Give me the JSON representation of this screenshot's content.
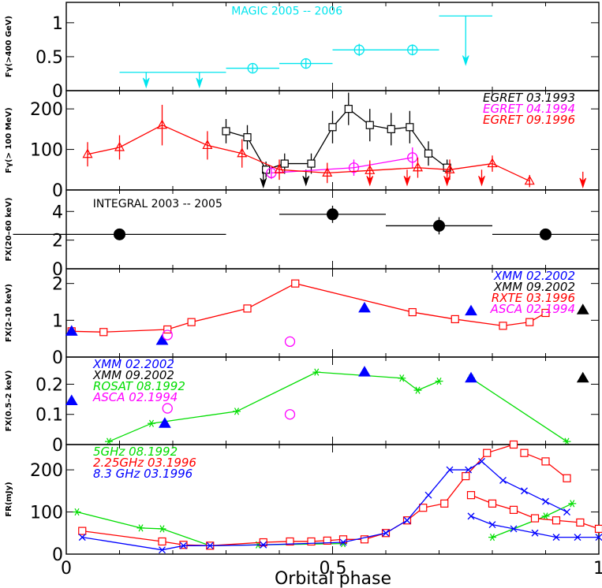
{
  "figure": {
    "xlabel": "Orbital phase",
    "x_ticks": [
      "0",
      "0.5",
      "1"
    ]
  },
  "chart_data": [
    {
      "id": "p1",
      "type": "scatter",
      "ylabel": "Fγ(>400 GeV)",
      "xlim": [
        0,
        1
      ],
      "ylim": [
        0,
        1.3
      ],
      "y_ticks": [
        0,
        0.5,
        1
      ],
      "y_tick_labels": [
        "0",
        "0.5",
        "1"
      ],
      "annotations": [
        {
          "text": "MAGIC 2005 -- 2006",
          "x": 0.31,
          "y": 1.12,
          "color": "#00e5ee"
        }
      ],
      "series": [
        {
          "name": "MAGIC 2005 -- 2006",
          "color": "#00e5ee",
          "marker": "circle",
          "connect": false,
          "points": [
            {
              "x": 0.35,
              "y": 0.33,
              "xerr": 0.05,
              "yerr": 0.06
            },
            {
              "x": 0.45,
              "y": 0.4,
              "xerr": 0.05,
              "yerr": 0.07
            },
            {
              "x": 0.55,
              "y": 0.6,
              "xerr": 0.05,
              "yerr": 0.09
            },
            {
              "x": 0.65,
              "y": 0.6,
              "xerr": 0.05,
              "yerr": 0.08
            }
          ],
          "upper_limits": [
            {
              "x": 0.15,
              "y": 0.27,
              "xerr": 0.05,
              "len": 0.2
            },
            {
              "x": 0.25,
              "y": 0.27,
              "xerr": 0.05,
              "len": 0.2
            },
            {
              "x": 0.75,
              "y": 1.1,
              "xerr": 0.05,
              "len": 0.7
            }
          ]
        }
      ]
    },
    {
      "id": "p2",
      "type": "line",
      "ylabel": "Fγ(> 100 MeV)",
      "xlim": [
        0,
        1
      ],
      "ylim": [
        0,
        245
      ],
      "y_ticks": [
        0,
        100,
        200
      ],
      "y_tick_labels": [
        "0",
        "100",
        "200"
      ],
      "legend": [
        {
          "text": "EGRET 03.1993",
          "color": "#000000"
        },
        {
          "text": "EGRET 04.1994",
          "color": "#ff00ff"
        },
        {
          "text": "EGRET 09.1996",
          "color": "#ff0000"
        }
      ],
      "series": [
        {
          "name": "EGRET 03.1993",
          "color": "#000000",
          "marker": "square",
          "connect": true,
          "points": [
            {
              "x": 0.3,
              "y": 145,
              "yerr": 30
            },
            {
              "x": 0.34,
              "y": 130,
              "yerr": 30
            },
            {
              "x": 0.375,
              "y": 50,
              "yerr": 20
            },
            {
              "x": 0.41,
              "y": 65,
              "yerr": 25
            },
            {
              "x": 0.46,
              "y": 65,
              "yerr": 25
            },
            {
              "x": 0.5,
              "y": 155,
              "yerr": 40
            },
            {
              "x": 0.53,
              "y": 200,
              "yerr": 40
            },
            {
              "x": 0.57,
              "y": 160,
              "yerr": 40
            },
            {
              "x": 0.61,
              "y": 150,
              "yerr": 40
            },
            {
              "x": 0.645,
              "y": 155,
              "yerr": 40
            },
            {
              "x": 0.68,
              "y": 90,
              "yerr": 30
            },
            {
              "x": 0.715,
              "y": 55,
              "yerr": 20
            }
          ],
          "upper_limits": [
            {
              "x": 0.37,
              "y": 45,
              "len": 35
            },
            {
              "x": 0.45,
              "y": 50,
              "len": 35
            }
          ]
        },
        {
          "name": "EGRET 04.1994",
          "color": "#ff00ff",
          "marker": "circle",
          "connect": true,
          "points": [
            {
              "x": 0.385,
              "y": 42,
              "yerr": 15
            },
            {
              "x": 0.54,
              "y": 55,
              "yerr": 20
            },
            {
              "x": 0.65,
              "y": 80,
              "yerr": 25
            }
          ]
        },
        {
          "name": "EGRET 09.1996",
          "color": "#ff0000",
          "marker": "triangle-open",
          "connect": true,
          "points": [
            {
              "x": 0.04,
              "y": 88,
              "yerr": 30
            },
            {
              "x": 0.1,
              "y": 105,
              "yerr": 30
            },
            {
              "x": 0.18,
              "y": 160,
              "yerr": 50
            },
            {
              "x": 0.265,
              "y": 110,
              "yerr": 35
            },
            {
              "x": 0.33,
              "y": 90,
              "yerr": 35
            },
            {
              "x": 0.4,
              "y": 50,
              "yerr": 25
            },
            {
              "x": 0.49,
              "y": 42,
              "yerr": 25
            },
            {
              "x": 0.57,
              "y": 48,
              "yerr": 25
            },
            {
              "x": 0.66,
              "y": 55,
              "yerr": 25
            },
            {
              "x": 0.72,
              "y": 50,
              "yerr": 25
            },
            {
              "x": 0.8,
              "y": 65,
              "yerr": 20
            },
            {
              "x": 0.87,
              "y": 22,
              "yerr": 15
            }
          ],
          "upper_limits": [
            {
              "x": 0.57,
              "y": 50,
              "len": 35
            },
            {
              "x": 0.64,
              "y": 50,
              "len": 35
            },
            {
              "x": 0.715,
              "y": 50,
              "len": 35
            },
            {
              "x": 0.78,
              "y": 50,
              "len": 35
            },
            {
              "x": 0.97,
              "y": 45,
              "len": 35
            }
          ]
        }
      ]
    },
    {
      "id": "p3",
      "type": "scatter",
      "ylabel": "FX(20–60 keV)",
      "xlim": [
        0,
        1
      ],
      "ylim": [
        0,
        5.5
      ],
      "y_ticks": [
        0,
        2,
        4
      ],
      "y_tick_labels": [
        "0",
        "2",
        "4"
      ],
      "annotations": [
        {
          "text": "INTEGRAL 2003 -- 2005",
          "x": 0.05,
          "y": 4.3,
          "color": "#000000"
        }
      ],
      "series": [
        {
          "name": "INTEGRAL 2003 -- 2005",
          "color": "#000000",
          "marker": "filled-circle",
          "connect": false,
          "points": [
            {
              "x": 0.1,
              "y": 2.4,
              "xerr": 0.2,
              "yerr": 0
            },
            {
              "x": 0.5,
              "y": 3.8,
              "xerr": 0.1,
              "yerr": 0.6
            },
            {
              "x": 0.7,
              "y": 3.0,
              "xerr": 0.1,
              "yerr": 0.6
            },
            {
              "x": 0.9,
              "y": 2.4,
              "xerr": 0.1,
              "yerr": 0
            }
          ]
        }
      ]
    },
    {
      "id": "p4",
      "type": "line",
      "ylabel": "FX(2–10 keV)",
      "xlim": [
        0,
        1
      ],
      "ylim": [
        0,
        2.4
      ],
      "y_ticks": [
        0,
        1,
        2
      ],
      "y_tick_labels": [
        "0",
        "1",
        "2"
      ],
      "legend": [
        {
          "text": "XMM   02.2002",
          "color": "#0000ff"
        },
        {
          "text": "XMM   09.2002",
          "color": "#000000"
        },
        {
          "text": "RXTE  03.1996",
          "color": "#ff0000"
        },
        {
          "text": "ASCA  02.1994",
          "color": "#ff00ff"
        }
      ],
      "series": [
        {
          "name": "RXTE 03.1996",
          "color": "#ff0000",
          "marker": "square",
          "connect": true,
          "points": [
            {
              "x": 0.01,
              "y": 0.7
            },
            {
              "x": 0.07,
              "y": 0.68
            },
            {
              "x": 0.19,
              "y": 0.75
            },
            {
              "x": 0.235,
              "y": 0.95
            },
            {
              "x": 0.34,
              "y": 1.32
            },
            {
              "x": 0.43,
              "y": 2.0
            },
            {
              "x": 0.65,
              "y": 1.22
            },
            {
              "x": 0.73,
              "y": 1.03
            },
            {
              "x": 0.82,
              "y": 0.85
            },
            {
              "x": 0.87,
              "y": 0.95
            },
            {
              "x": 0.9,
              "y": 1.2
            }
          ]
        },
        {
          "name": "XMM 02.2002",
          "color": "#0000ff",
          "marker": "filled-triangle",
          "connect": false,
          "points": [
            {
              "x": 0.01,
              "y": 0.7
            },
            {
              "x": 0.18,
              "y": 0.45
            },
            {
              "x": 0.56,
              "y": 1.33
            },
            {
              "x": 0.76,
              "y": 1.25
            }
          ]
        },
        {
          "name": "XMM 09.2002",
          "color": "#000000",
          "marker": "filled-triangle",
          "connect": false,
          "points": [
            {
              "x": 0.97,
              "y": 1.28
            }
          ]
        },
        {
          "name": "ASCA 02.1994",
          "color": "#ff00ff",
          "marker": "circle",
          "connect": false,
          "points": [
            {
              "x": 0.19,
              "y": 0.6
            },
            {
              "x": 0.42,
              "y": 0.42
            }
          ]
        }
      ]
    },
    {
      "id": "p5",
      "type": "line",
      "ylabel": "FX(0.5–2 keV)",
      "xlim": [
        0,
        1
      ],
      "ylim": [
        0,
        0.29
      ],
      "y_ticks": [
        0,
        0.1,
        0.2
      ],
      "y_tick_labels": [
        "0",
        "0.1",
        "0.2"
      ],
      "legend": [
        {
          "text": "XMM   02.2002",
          "color": "#0000ff"
        },
        {
          "text": "XMM      09.2002",
          "color": "#000000"
        },
        {
          "text": "ROSAT  08.1992",
          "color": "#00dd00"
        },
        {
          "text": "ASCA   02.1994",
          "color": "#ff00ff"
        }
      ],
      "series": [
        {
          "name": "ROSAT 08.1992",
          "color": "#00dd00",
          "marker": "star",
          "connect": true,
          "points": [
            {
              "x": 0.08,
              "y": 0.01
            },
            {
              "x": 0.16,
              "y": 0.07
            },
            {
              "x": 0.32,
              "y": 0.11
            },
            {
              "x": 0.47,
              "y": 0.24
            },
            {
              "x": 0.63,
              "y": 0.22
            },
            {
              "x": 0.66,
              "y": 0.18
            },
            {
              "x": 0.7,
              "y": 0.21
            }
          ]
        },
        {
          "name": "ROSAT 08.1992 (b)",
          "color": "#00dd00",
          "marker": "star",
          "connect": true,
          "points": [
            {
              "x": 0.76,
              "y": 0.22
            },
            {
              "x": 0.94,
              "y": 0.01
            }
          ]
        },
        {
          "name": "XMM 02.2002",
          "color": "#0000ff",
          "marker": "filled-triangle",
          "connect": false,
          "points": [
            {
              "x": 0.01,
              "y": 0.145
            },
            {
              "x": 0.185,
              "y": 0.07
            },
            {
              "x": 0.56,
              "y": 0.24
            },
            {
              "x": 0.76,
              "y": 0.22
            }
          ]
        },
        {
          "name": "XMM 09.2002",
          "color": "#000000",
          "marker": "filled-triangle",
          "connect": false,
          "points": [
            {
              "x": 0.97,
              "y": 0.22
            }
          ]
        },
        {
          "name": "ASCA 02.1994",
          "color": "#ff00ff",
          "marker": "circle",
          "connect": false,
          "points": [
            {
              "x": 0.19,
              "y": 0.12
            },
            {
              "x": 0.42,
              "y": 0.1
            }
          ]
        }
      ]
    },
    {
      "id": "p6",
      "type": "line",
      "ylabel": "FR(mJy)",
      "xlim": [
        0,
        1
      ],
      "ylim": [
        0,
        260
      ],
      "y_ticks": [
        0,
        100,
        200
      ],
      "y_tick_labels": [
        "0",
        "100",
        "200"
      ],
      "legend": [
        {
          "text": "5GHz 08.1992",
          "color": "#00dd00"
        },
        {
          "text": "2.25GHz 03.1996",
          "color": "#ff0000"
        },
        {
          "text": "8.3 GHz 03.1996",
          "color": "#0000ff"
        }
      ],
      "series": [
        {
          "name": "5GHz 08.1992",
          "color": "#00dd00",
          "marker": "star",
          "connect": true,
          "points": [
            {
              "x": 0.02,
              "y": 100
            },
            {
              "x": 0.14,
              "y": 62
            },
            {
              "x": 0.18,
              "y": 60
            },
            {
              "x": 0.27,
              "y": 20
            },
            {
              "x": 0.36,
              "y": 22
            },
            {
              "x": 0.52,
              "y": 25
            }
          ]
        },
        {
          "name": "5GHz 08.1992 (b)",
          "color": "#00dd00",
          "marker": "star",
          "connect": true,
          "points": [
            {
              "x": 0.8,
              "y": 40
            },
            {
              "x": 0.9,
              "y": 90
            },
            {
              "x": 0.95,
              "y": 120
            }
          ]
        },
        {
          "name": "2.25GHz 03.1996",
          "color": "#ff0000",
          "marker": "square",
          "connect": true,
          "points": [
            {
              "x": 0.03,
              "y": 55
            },
            {
              "x": 0.18,
              "y": 30
            },
            {
              "x": 0.22,
              "y": 22
            },
            {
              "x": 0.27,
              "y": 20
            },
            {
              "x": 0.37,
              "y": 28
            },
            {
              "x": 0.42,
              "y": 30
            },
            {
              "x": 0.46,
              "y": 30
            },
            {
              "x": 0.49,
              "y": 32
            },
            {
              "x": 0.52,
              "y": 35
            },
            {
              "x": 0.56,
              "y": 35
            },
            {
              "x": 0.6,
              "y": 50
            },
            {
              "x": 0.64,
              "y": 80
            },
            {
              "x": 0.67,
              "y": 110
            },
            {
              "x": 0.71,
              "y": 120
            },
            {
              "x": 0.75,
              "y": 185
            },
            {
              "x": 0.79,
              "y": 240
            },
            {
              "x": 0.84,
              "y": 260
            }
          ]
        },
        {
          "name": "2.25GHz 03.1996 (b)",
          "color": "#ff0000",
          "marker": "square",
          "connect": true,
          "points": [
            {
              "x": 0.86,
              "y": 240
            },
            {
              "x": 0.9,
              "y": 220
            },
            {
              "x": 0.94,
              "y": 180
            }
          ]
        },
        {
          "name": "2.25GHz 03.1996 (c)",
          "color": "#ff0000",
          "marker": "square",
          "connect": true,
          "points": [
            {
              "x": 0.76,
              "y": 140
            },
            {
              "x": 0.8,
              "y": 120
            },
            {
              "x": 0.84,
              "y": 105
            },
            {
              "x": 0.88,
              "y": 85
            },
            {
              "x": 0.92,
              "y": 80
            },
            {
              "x": 0.965,
              "y": 75
            },
            {
              "x": 1.0,
              "y": 60
            }
          ]
        },
        {
          "name": "8.3 GHz 03.1996",
          "color": "#0000ff",
          "marker": "cross",
          "connect": true,
          "points": [
            {
              "x": 0.03,
              "y": 40
            },
            {
              "x": 0.18,
              "y": 10
            },
            {
              "x": 0.22,
              "y": 20
            },
            {
              "x": 0.27,
              "y": 20
            },
            {
              "x": 0.37,
              "y": 22
            },
            {
              "x": 0.52,
              "y": 28
            },
            {
              "x": 0.6,
              "y": 50
            },
            {
              "x": 0.64,
              "y": 80
            },
            {
              "x": 0.68,
              "y": 140
            },
            {
              "x": 0.72,
              "y": 200
            },
            {
              "x": 0.755,
              "y": 200
            },
            {
              "x": 0.78,
              "y": 220
            },
            {
              "x": 0.82,
              "y": 175
            },
            {
              "x": 0.86,
              "y": 150
            },
            {
              "x": 0.9,
              "y": 125
            },
            {
              "x": 0.94,
              "y": 100
            }
          ]
        },
        {
          "name": "8.3 GHz 03.1996 (b)",
          "color": "#0000ff",
          "marker": "cross",
          "connect": true,
          "points": [
            {
              "x": 0.76,
              "y": 90
            },
            {
              "x": 0.8,
              "y": 70
            },
            {
              "x": 0.84,
              "y": 60
            },
            {
              "x": 0.88,
              "y": 50
            },
            {
              "x": 0.92,
              "y": 40
            },
            {
              "x": 0.96,
              "y": 40
            },
            {
              "x": 1.0,
              "y": 40
            }
          ]
        }
      ]
    }
  ]
}
